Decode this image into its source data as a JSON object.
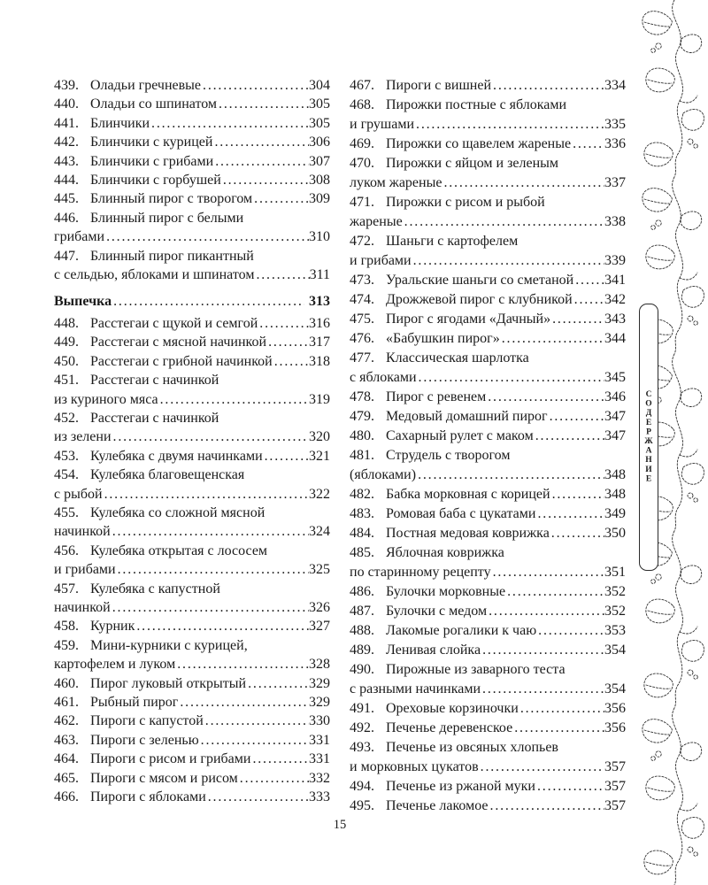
{
  "folio": "15",
  "sidebar": {
    "label": "СОДЕРЖАНИЕ"
  },
  "colors": {
    "text": "#1b1b1b",
    "ornament": "#2e2e2e",
    "paper": "#ffffff"
  },
  "toc": {
    "columns": [
      {
        "side": "left",
        "entries": [
          {
            "num": "439.",
            "lines": [
              "Оладьи гречневые"
            ],
            "page": "304"
          },
          {
            "num": "440.",
            "lines": [
              "Оладьи со шпинатом"
            ],
            "page": "305"
          },
          {
            "num": "441.",
            "lines": [
              "Блинчики"
            ],
            "page": "305"
          },
          {
            "num": "442.",
            "lines": [
              "Блинчики с курицей"
            ],
            "page": "306"
          },
          {
            "num": "443.",
            "lines": [
              "Блинчики с грибами"
            ],
            "page": "307"
          },
          {
            "num": "444.",
            "lines": [
              "Блинчики с горбушей"
            ],
            "page": "308"
          },
          {
            "num": "445.",
            "lines": [
              "Блинный пирог с творогом"
            ],
            "page": "309"
          },
          {
            "num": "446.",
            "lines": [
              "Блинный пирог с белыми",
              "грибами"
            ],
            "page": "310"
          },
          {
            "num": "447.",
            "lines": [
              "Блинный пирог пикантный",
              "с сельдью, яблоками и шпинатом"
            ],
            "page": "311"
          },
          {
            "section": true,
            "lines": [
              "Выпечка"
            ],
            "page": "313"
          },
          {
            "num": "448.",
            "lines": [
              "Расстегаи с щукой и семгой"
            ],
            "page": "316"
          },
          {
            "num": "449.",
            "lines": [
              "Расстегаи с мясной начинкой"
            ],
            "page": "317"
          },
          {
            "num": "450.",
            "lines": [
              "Расстегаи с грибной начинкой"
            ],
            "page": "318"
          },
          {
            "num": "451.",
            "lines": [
              "Расстегаи с начинкой",
              "из куриного мяса"
            ],
            "page": "319"
          },
          {
            "num": "452.",
            "lines": [
              "Расстегаи с начинкой",
              "из зелени"
            ],
            "page": "320"
          },
          {
            "num": "453.",
            "lines": [
              "Кулебяка с двумя начинками"
            ],
            "page": "321"
          },
          {
            "num": "454.",
            "lines": [
              "Кулебяка благовещенская",
              "с рыбой"
            ],
            "page": "322"
          },
          {
            "num": "455.",
            "lines": [
              "Кулебяка со сложной мясной",
              "начинкой"
            ],
            "page": "324"
          },
          {
            "num": "456.",
            "lines": [
              "Кулебяка открытая с лососем",
              "и грибами"
            ],
            "page": "325"
          },
          {
            "num": "457.",
            "lines": [
              "Кулебяка с капустной",
              "начинкой"
            ],
            "page": "326"
          },
          {
            "num": "458.",
            "lines": [
              "Курник"
            ],
            "page": "327"
          },
          {
            "num": "459.",
            "lines": [
              "Мини-курники с курицей,",
              "картофелем и луком"
            ],
            "page": "328"
          },
          {
            "num": "460.",
            "lines": [
              "Пирог луковый открытый"
            ],
            "page": "329"
          },
          {
            "num": "461.",
            "lines": [
              "Рыбный пирог"
            ],
            "page": "329"
          },
          {
            "num": "462.",
            "lines": [
              "Пироги с капустой"
            ],
            "page": "330"
          },
          {
            "num": "463.",
            "lines": [
              "Пироги с зеленью"
            ],
            "page": "331"
          },
          {
            "num": "464.",
            "lines": [
              "Пироги с рисом и грибами"
            ],
            "page": "331"
          },
          {
            "num": "465.",
            "lines": [
              "Пироги с мясом и рисом"
            ],
            "page": "332"
          },
          {
            "num": "466.",
            "lines": [
              "Пироги с яблоками"
            ],
            "page": "333"
          }
        ]
      },
      {
        "side": "right",
        "entries": [
          {
            "num": "467.",
            "lines": [
              "Пироги с вишней"
            ],
            "page": "334"
          },
          {
            "num": "468.",
            "lines": [
              "Пирожки постные с яблоками",
              "и грушами"
            ],
            "page": "335"
          },
          {
            "num": "469.",
            "lines": [
              "Пирожки со щавелем жареные"
            ],
            "page": "336"
          },
          {
            "num": "470.",
            "lines": [
              "Пирожки с яйцом и зеленым",
              "луком жареные"
            ],
            "page": "337"
          },
          {
            "num": "471.",
            "lines": [
              "Пирожки с рисом и рыбой",
              "жареные"
            ],
            "page": "338"
          },
          {
            "num": "472.",
            "lines": [
              "Шаньги с картофелем",
              "и грибами"
            ],
            "page": "339"
          },
          {
            "num": "473.",
            "lines": [
              "Уральские шаньги со сметаной"
            ],
            "page": "341"
          },
          {
            "num": "474.",
            "lines": [
              "Дрожжевой пирог с клубникой"
            ],
            "page": "342"
          },
          {
            "num": "475.",
            "lines": [
              "Пирог с ягодами «Дачный»"
            ],
            "page": "343"
          },
          {
            "num": "476.",
            "lines": [
              "«Бабушкин пирог»"
            ],
            "page": "344"
          },
          {
            "num": "477.",
            "lines": [
              "Классическая шарлотка",
              "с яблоками"
            ],
            "page": "345"
          },
          {
            "num": "478.",
            "lines": [
              "Пирог с ревенем"
            ],
            "page": "346"
          },
          {
            "num": "479.",
            "lines": [
              "Медовый домашний пирог"
            ],
            "page": "347"
          },
          {
            "num": "480.",
            "lines": [
              "Сахарный рулет с маком"
            ],
            "page": "347"
          },
          {
            "num": "481.",
            "lines": [
              "Струдель с творогом",
              "(яблоками)"
            ],
            "page": "348"
          },
          {
            "num": "482.",
            "lines": [
              "Бабка морковная с корицей"
            ],
            "page": "348"
          },
          {
            "num": "483.",
            "lines": [
              "Ромовая баба с цукатами"
            ],
            "page": "349"
          },
          {
            "num": "484.",
            "lines": [
              "Постная медовая коврижка"
            ],
            "page": "350"
          },
          {
            "num": "485.",
            "lines": [
              "Яблочная коврижка",
              "по старинному рецепту"
            ],
            "page": "351"
          },
          {
            "num": "486.",
            "lines": [
              "Булочки морковные"
            ],
            "page": "352"
          },
          {
            "num": "487.",
            "lines": [
              "Булочки с медом"
            ],
            "page": "352"
          },
          {
            "num": "488.",
            "lines": [
              "Лакомые рогалики к чаю"
            ],
            "page": "353"
          },
          {
            "num": "489.",
            "lines": [
              "Ленивая слойка"
            ],
            "page": "354"
          },
          {
            "num": "490.",
            "lines": [
              "Пирожные из заварного теста",
              "с разными начинками"
            ],
            "page": "354"
          },
          {
            "num": "491.",
            "lines": [
              "Ореховые корзиночки"
            ],
            "page": "356"
          },
          {
            "num": "492.",
            "lines": [
              "Печенье деревенское"
            ],
            "page": "356"
          },
          {
            "num": "493.",
            "lines": [
              "Печенье из овсяных хлопьев",
              "и морковных цукатов"
            ],
            "page": "357"
          },
          {
            "num": "494.",
            "lines": [
              "Печенье из ржаной муки"
            ],
            "page": "357"
          },
          {
            "num": "495.",
            "lines": [
              "Печенье лакомое"
            ],
            "page": "357"
          }
        ]
      }
    ]
  }
}
